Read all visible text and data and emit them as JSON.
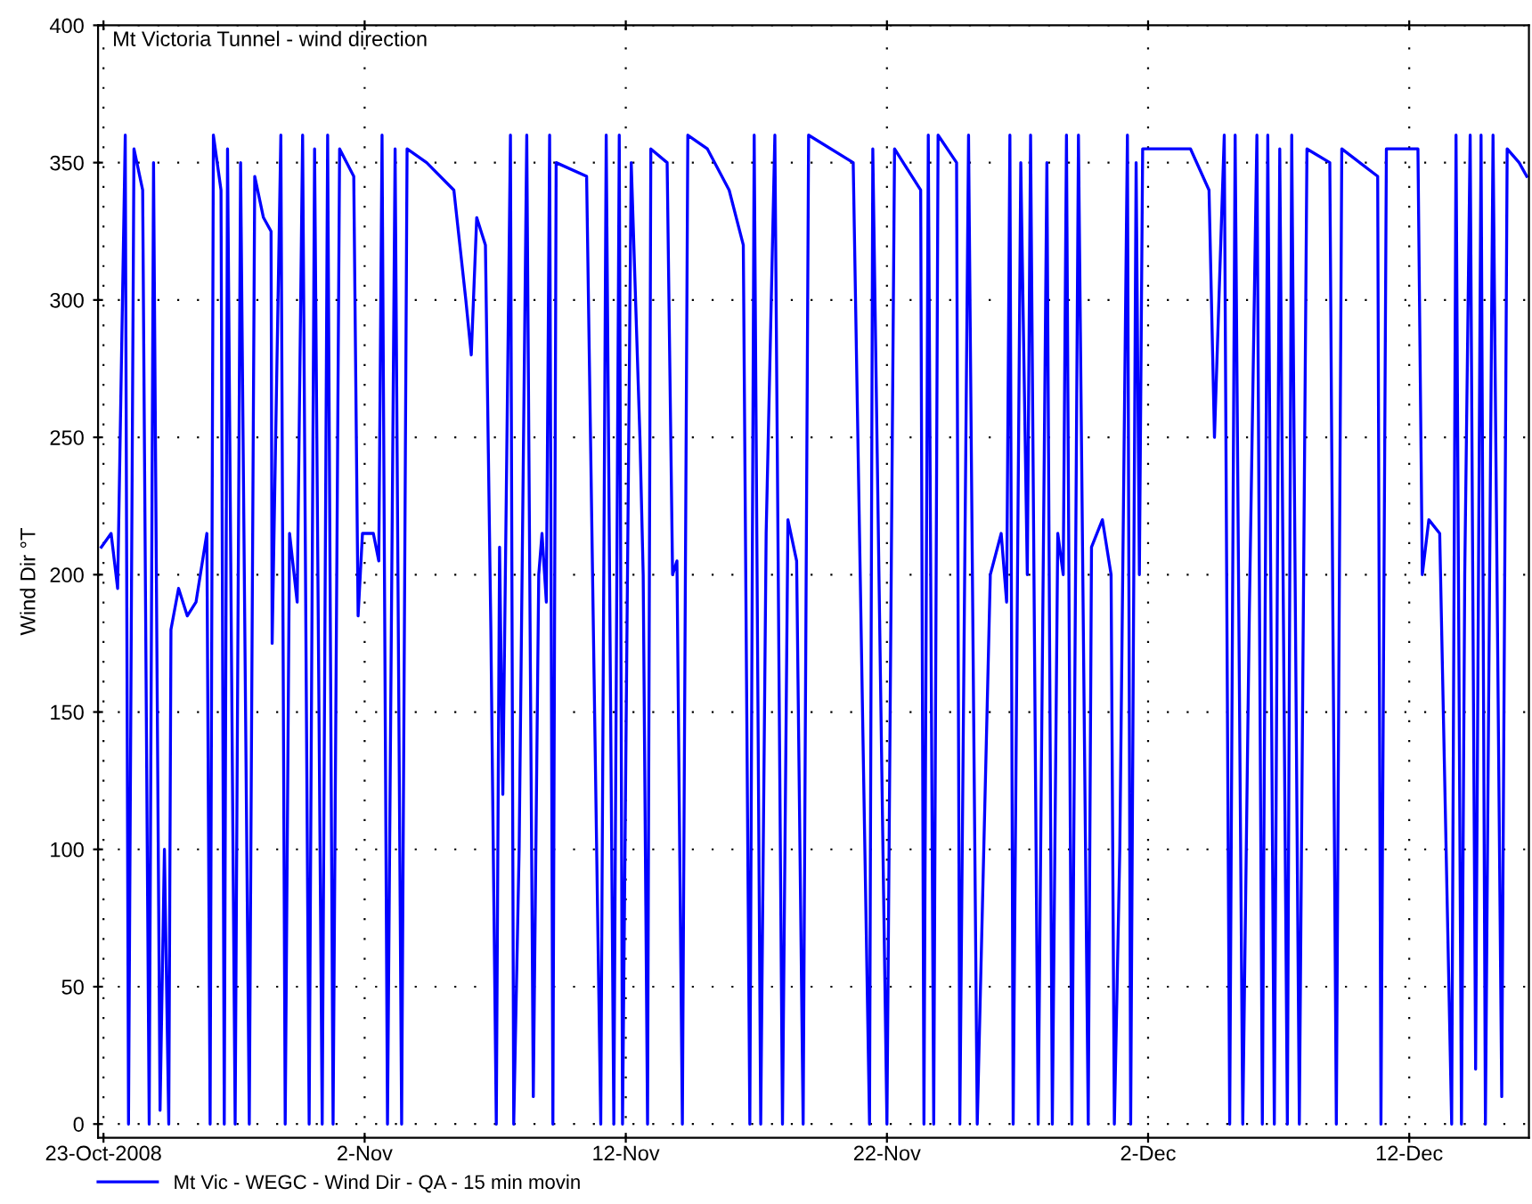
{
  "chart_data": {
    "type": "line",
    "title": "Mt Victoria Tunnel - wind direction",
    "ylabel": "Wind Dir °T",
    "xlim": [
      "2008-10-22T19:00",
      "2008-12-16T14:00"
    ],
    "xticks": [
      {
        "value": "2008-10-23",
        "label": "23-Oct-2008"
      },
      {
        "value": "2008-11-02",
        "label": "2-Nov"
      },
      {
        "value": "2008-11-12",
        "label": "12-Nov"
      },
      {
        "value": "2008-11-22",
        "label": "22-Nov"
      },
      {
        "value": "2008-12-02",
        "label": "2-Dec"
      },
      {
        "value": "2008-12-12",
        "label": "12-Dec"
      }
    ],
    "ylim": [
      -5,
      400
    ],
    "yticks": [
      0,
      50,
      100,
      150,
      200,
      250,
      300,
      350,
      400
    ],
    "grid": true,
    "legend": "bottom left",
    "marker": "none",
    "line_style": "solid",
    "x": [
      "2008-10-22T22:00",
      "2008-10-23T07:00",
      "2008-10-23T13:00",
      "2008-10-23T20:00",
      "2008-10-23T23:00",
      "2008-10-24T04:00",
      "2008-10-24T12:00",
      "2008-10-24T18:00",
      "2008-10-24T22:00",
      "2008-10-25T04:00",
      "2008-10-25T08:00",
      "2008-10-25T12:00",
      "2008-10-25T14:00",
      "2008-10-25T21:00",
      "2008-10-26T05:00",
      "2008-10-26T13:00",
      "2008-10-26T23:00",
      "2008-10-27T02:00",
      "2008-10-27T05:00",
      "2008-10-27T12:00",
      "2008-10-27T15:00",
      "2008-10-27T18:00",
      "2008-10-28T01:00",
      "2008-10-28T06:00",
      "2008-10-28T14:00",
      "2008-10-28T19:00",
      "2008-10-29T03:00",
      "2008-10-29T10:00",
      "2008-10-29T11:00",
      "2008-10-29T19:00",
      "2008-10-29T23:00",
      "2008-10-30T03:00",
      "2008-10-30T10:00",
      "2008-10-30T15:00",
      "2008-10-30T21:00",
      "2008-10-31T02:00",
      "2008-10-31T09:00",
      "2008-10-31T14:00",
      "2008-10-31T19:00",
      "2008-11-01T01:00",
      "2008-11-01T14:00",
      "2008-11-01T18:00",
      "2008-11-01T22:00",
      "2008-11-02T08:00",
      "2008-11-02T13:00",
      "2008-11-02T16:00",
      "2008-11-02T21:00",
      "2008-11-03T04:00",
      "2008-11-03T10:00",
      "2008-11-03T15:00",
      "2008-11-04T09:00",
      "2008-11-05T10:00",
      "2008-11-05T21:00",
      "2008-11-06T02:00",
      "2008-11-06T07:00",
      "2008-11-06T15:00",
      "2008-11-06T20:00",
      "2008-11-07T01:00",
      "2008-11-07T04:00",
      "2008-11-07T07:00",
      "2008-11-07T14:00",
      "2008-11-07T17:00",
      "2008-11-07T22:00",
      "2008-11-08T05:00",
      "2008-11-08T11:00",
      "2008-11-08T16:00",
      "2008-11-08T19:00",
      "2008-11-08T23:00",
      "2008-11-09T02:00",
      "2008-11-09T05:00",
      "2008-11-09T08:00",
      "2008-11-10T12:00",
      "2008-11-11T01:00",
      "2008-11-11T06:00",
      "2008-11-11T13:00",
      "2008-11-11T18:00",
      "2008-11-11T21:00",
      "2008-11-12T05:00",
      "2008-11-12T13:00",
      "2008-11-12T16:00",
      "2008-11-12T20:00",
      "2008-11-12T23:00",
      "2008-11-13T14:00",
      "2008-11-13T19:00",
      "2008-11-13T23:00",
      "2008-11-14T04:00",
      "2008-11-14T09:00",
      "2008-11-15T03:00",
      "2008-11-15T23:00",
      "2008-11-16T12:00",
      "2008-11-16T18:00",
      "2008-11-16T22:00",
      "2008-11-17T04:00",
      "2008-11-17T09:00",
      "2008-11-17T17:00",
      "2008-11-18T00:00",
      "2008-11-18T05:00",
      "2008-11-18T13:00",
      "2008-11-18T19:00",
      "2008-11-19T00:00",
      "2008-11-20T17:00",
      "2008-11-21T08:00",
      "2008-11-21T11:00",
      "2008-11-22T00:00",
      "2008-11-22T07:00",
      "2008-11-23T07:00",
      "2008-11-23T10:00",
      "2008-11-23T14:00",
      "2008-11-23T19:00",
      "2008-11-23T23:00",
      "2008-11-24T16:00",
      "2008-11-24T19:00",
      "2008-11-25T03:00",
      "2008-11-25T11:00",
      "2008-11-25T23:00",
      "2008-11-26T09:00",
      "2008-11-26T14:00",
      "2008-11-26T17:00",
      "2008-11-26T20:00",
      "2008-11-27T03:00",
      "2008-11-27T09:00",
      "2008-11-27T12:00",
      "2008-11-27T19:00",
      "2008-11-28T03:00",
      "2008-11-28T08:00",
      "2008-11-28T13:00",
      "2008-11-28T18:00",
      "2008-11-28T21:00",
      "2008-11-29T02:00",
      "2008-11-29T08:00",
      "2008-11-29T17:00",
      "2008-11-29T20:00",
      "2008-11-30T06:00",
      "2008-11-30T14:00",
      "2008-11-30T17:00",
      "2008-11-30T22:00",
      "2008-12-01T05:00",
      "2008-12-01T08:00",
      "2008-12-01T13:00",
      "2008-12-01T16:00",
      "2008-12-01T19:00",
      "2008-12-03T15:00",
      "2008-12-04T08:00",
      "2008-12-04T13:00",
      "2008-12-04T22:00",
      "2008-12-05T03:00",
      "2008-12-05T08:00",
      "2008-12-05T15:00",
      "2008-12-05T21:00",
      "2008-12-06T04:00",
      "2008-12-06T09:00",
      "2008-12-06T14:00",
      "2008-12-06T20:00",
      "2008-12-07T01:00",
      "2008-12-07T08:00",
      "2008-12-07T12:00",
      "2008-12-07T19:00",
      "2008-12-08T02:00",
      "2008-12-08T23:00",
      "2008-12-09T05:00",
      "2008-12-09T10:00",
      "2008-12-10T19:00",
      "2008-12-10T22:00",
      "2008-12-11T03:00",
      "2008-12-12T08:00",
      "2008-12-12T12:00",
      "2008-12-12T18:00",
      "2008-12-13T04:00",
      "2008-12-13T15:00",
      "2008-12-13T19:00",
      "2008-12-14T00:00",
      "2008-12-14T03:00",
      "2008-12-14T08:00",
      "2008-12-14T13:00",
      "2008-12-14T18:00",
      "2008-12-14T22:00",
      "2008-12-15T05:00",
      "2008-12-15T13:00",
      "2008-12-15T18:00",
      "2008-12-16T05:00",
      "2008-12-16T12:00"
    ],
    "series": [
      {
        "name": "Mt Vic - WEGC - Wind Dir - QA - 15 min movin",
        "color": "#0000ff",
        "values": [
          210,
          215,
          195,
          360,
          0,
          355,
          340,
          0,
          350,
          5,
          100,
          0,
          180,
          195,
          185,
          190,
          215,
          0,
          360,
          340,
          0,
          355,
          0,
          350,
          0,
          345,
          330,
          325,
          175,
          360,
          0,
          215,
          190,
          360,
          0,
          355,
          0,
          360,
          0,
          355,
          345,
          185,
          215,
          215,
          205,
          360,
          0,
          355,
          0,
          355,
          350,
          340,
          300,
          280,
          330,
          320,
          180,
          0,
          210,
          120,
          360,
          0,
          100,
          360,
          10,
          200,
          215,
          190,
          360,
          0,
          350,
          345,
          0,
          360,
          0,
          360,
          0,
          350,
          250,
          200,
          0,
          355,
          350,
          200,
          205,
          0,
          360,
          355,
          340,
          320,
          0,
          360,
          0,
          215,
          360,
          0,
          220,
          205,
          0,
          360,
          350,
          0,
          355,
          0,
          355,
          340,
          0,
          360,
          0,
          360,
          350,
          0,
          360,
          0,
          200,
          215,
          190,
          360,
          0,
          350,
          200,
          360,
          0,
          350,
          0,
          215,
          200,
          360,
          0,
          360,
          0,
          210,
          220,
          200,
          0,
          100,
          360,
          0,
          350,
          200,
          355,
          355,
          340,
          250,
          360,
          0,
          360,
          0,
          185,
          360,
          0,
          360,
          0,
          355,
          0,
          360,
          0,
          355,
          350,
          0,
          355,
          345,
          0,
          355,
          355,
          200,
          220,
          215,
          0,
          360,
          0,
          200,
          360,
          20,
          360,
          0,
          360,
          10,
          355,
          350,
          345
        ]
      }
    ]
  }
}
